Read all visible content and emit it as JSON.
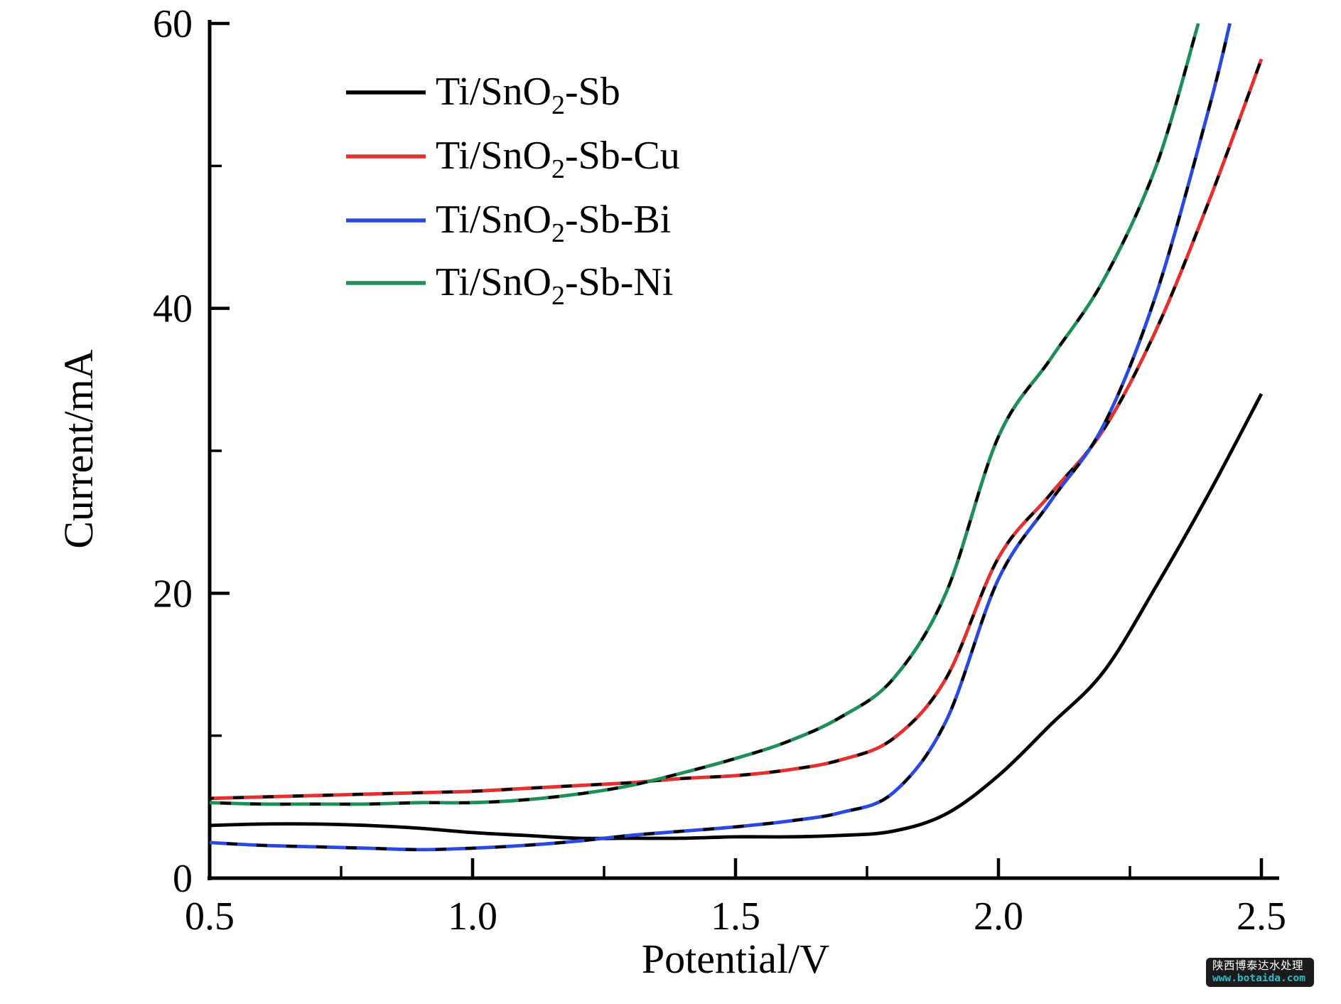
{
  "watermark": {
    "line1": "陕西博泰达水处理",
    "line2": "www.botaida.com",
    "bg_color": "#1b1b1b",
    "line1_color": "#ffffff",
    "line2_color": "#2bbccd"
  },
  "chart_data": {
    "type": "line",
    "title": "",
    "xlabel": "Potential/V",
    "ylabel": "Current/mA",
    "xlim": [
      0.5,
      2.5
    ],
    "ylim": [
      0,
      60
    ],
    "grid": false,
    "legend_position": "upper-left-inside",
    "axis_color": "#000000",
    "x_major_ticks": [
      {
        "value": 0.5,
        "label": "0.5"
      },
      {
        "value": 1.0,
        "label": "1.0"
      },
      {
        "value": 1.5,
        "label": "1.5"
      },
      {
        "value": 2.0,
        "label": "2.0"
      },
      {
        "value": 2.5,
        "label": "2.5"
      }
    ],
    "x_minor_ticks": [
      0.75,
      1.25,
      1.75,
      2.25
    ],
    "y_major_ticks": [
      {
        "value": 0,
        "label": "0"
      },
      {
        "value": 20,
        "label": "20"
      },
      {
        "value": 40,
        "label": "40"
      },
      {
        "value": 60,
        "label": "60"
      }
    ],
    "y_minor_ticks": [
      10,
      30,
      50
    ],
    "series": [
      {
        "name": "Ti/SnO2-Sb",
        "label_pre": "Ti/SnO",
        "label_sub": "2",
        "label_post": "-Sb",
        "color": "#000000",
        "dash_overlay": false,
        "points": [
          [
            0.5,
            3.7
          ],
          [
            0.6,
            3.8
          ],
          [
            0.7,
            3.8
          ],
          [
            0.8,
            3.7
          ],
          [
            0.9,
            3.5
          ],
          [
            1.0,
            3.2
          ],
          [
            1.1,
            3.0
          ],
          [
            1.2,
            2.8
          ],
          [
            1.3,
            2.8
          ],
          [
            1.4,
            2.8
          ],
          [
            1.5,
            2.9
          ],
          [
            1.6,
            2.9
          ],
          [
            1.7,
            3.0
          ],
          [
            1.8,
            3.3
          ],
          [
            1.9,
            4.5
          ],
          [
            2.0,
            7.2
          ],
          [
            2.1,
            10.8
          ],
          [
            2.2,
            14.5
          ],
          [
            2.3,
            20.5
          ],
          [
            2.4,
            27.0
          ],
          [
            2.5,
            34.0
          ]
        ]
      },
      {
        "name": "Ti/SnO2-Sb-Cu",
        "label_pre": "Ti/SnO",
        "label_sub": "2",
        "label_post": "-Sb-Cu",
        "color": "#e62f2f",
        "dash_overlay": true,
        "points": [
          [
            0.5,
            5.6
          ],
          [
            0.6,
            5.7
          ],
          [
            0.7,
            5.8
          ],
          [
            0.8,
            5.9
          ],
          [
            0.9,
            6.0
          ],
          [
            1.0,
            6.1
          ],
          [
            1.1,
            6.3
          ],
          [
            1.2,
            6.5
          ],
          [
            1.3,
            6.7
          ],
          [
            1.4,
            7.0
          ],
          [
            1.5,
            7.2
          ],
          [
            1.6,
            7.6
          ],
          [
            1.7,
            8.3
          ],
          [
            1.8,
            9.8
          ],
          [
            1.9,
            14.0
          ],
          [
            2.0,
            22.5
          ],
          [
            2.1,
            27.0
          ],
          [
            2.2,
            31.5
          ],
          [
            2.3,
            38.5
          ],
          [
            2.4,
            47.5
          ],
          [
            2.5,
            57.5
          ]
        ]
      },
      {
        "name": "Ti/SnO2-Sb-Bi",
        "label_pre": "Ti/SnO",
        "label_sub": "2",
        "label_post": "-Sb-Bi",
        "color": "#2a49e0",
        "dash_overlay": true,
        "points": [
          [
            0.5,
            2.5
          ],
          [
            0.6,
            2.3
          ],
          [
            0.7,
            2.2
          ],
          [
            0.8,
            2.1
          ],
          [
            0.9,
            2.0
          ],
          [
            1.0,
            2.1
          ],
          [
            1.1,
            2.3
          ],
          [
            1.2,
            2.6
          ],
          [
            1.3,
            3.0
          ],
          [
            1.4,
            3.3
          ],
          [
            1.5,
            3.6
          ],
          [
            1.6,
            4.0
          ],
          [
            1.7,
            4.6
          ],
          [
            1.8,
            6.0
          ],
          [
            1.9,
            11.0
          ],
          [
            2.0,
            21.0
          ],
          [
            2.1,
            26.5
          ],
          [
            2.2,
            31.8
          ],
          [
            2.3,
            41.0
          ],
          [
            2.4,
            54.0
          ],
          [
            2.44,
            60.0
          ]
        ]
      },
      {
        "name": "Ti/SnO2-Sb-Ni",
        "label_pre": "Ti/SnO",
        "label_sub": "2",
        "label_post": "-Sb-Ni",
        "color": "#1e8f57",
        "dash_overlay": true,
        "points": [
          [
            0.5,
            5.3
          ],
          [
            0.6,
            5.2
          ],
          [
            0.7,
            5.2
          ],
          [
            0.8,
            5.2
          ],
          [
            0.9,
            5.3
          ],
          [
            1.0,
            5.3
          ],
          [
            1.1,
            5.5
          ],
          [
            1.2,
            5.9
          ],
          [
            1.3,
            6.5
          ],
          [
            1.4,
            7.4
          ],
          [
            1.5,
            8.4
          ],
          [
            1.6,
            9.6
          ],
          [
            1.7,
            11.3
          ],
          [
            1.8,
            14.0
          ],
          [
            1.9,
            20.0
          ],
          [
            2.0,
            31.0
          ],
          [
            2.1,
            36.5
          ],
          [
            2.2,
            42.0
          ],
          [
            2.3,
            50.0
          ],
          [
            2.38,
            60.0
          ]
        ]
      }
    ]
  }
}
